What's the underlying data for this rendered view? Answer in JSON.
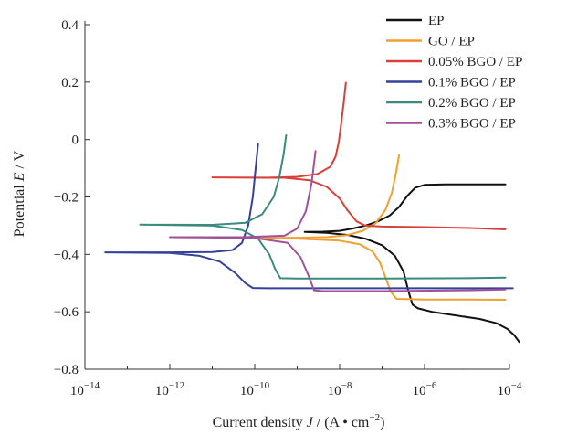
{
  "chart_data": {
    "type": "line",
    "xlabel": "Current density J / (A • cm⁻²)",
    "ylabel": "Potential E / V",
    "x_scale": "log",
    "xlim": [
      1e-14,
      0.0001
    ],
    "ylim": [
      -0.8,
      0.4
    ],
    "x_tick_exponents": [
      -14,
      -12,
      -10,
      -8,
      -6,
      -4
    ],
    "y_ticks": [
      0.4,
      0.2,
      0,
      -0.2,
      -0.4,
      -0.6,
      -0.8
    ],
    "y_tick_labels": [
      "0.4",
      "0.2",
      "0",
      "−0.2",
      "−0.4",
      "−0.6",
      "−0.8"
    ],
    "grid": false,
    "legend_position": "top-right",
    "series": [
      {
        "name": "EP",
        "color": "#111111",
        "points": [
          [
            1.5e-09,
            -0.322
          ],
          [
            4e-09,
            -0.321
          ],
          [
            1e-08,
            -0.318
          ],
          [
            2e-08,
            -0.31
          ],
          [
            4e-08,
            -0.3
          ],
          [
            8e-08,
            -0.285
          ],
          [
            1.5e-07,
            -0.265
          ],
          [
            2.5e-07,
            -0.235
          ],
          [
            4e-07,
            -0.195
          ],
          [
            6e-07,
            -0.168
          ],
          [
            1e-06,
            -0.158
          ],
          [
            3e-06,
            -0.156
          ],
          [
            1e-05,
            -0.156
          ],
          [
            3e-05,
            -0.156
          ],
          [
            8e-05,
            -0.156
          ],
          [
            8e-05,
            -0.156
          ],
          [
            1.5e-09,
            -0.322
          ],
          [
            5e-09,
            -0.325
          ],
          [
            1.5e-08,
            -0.332
          ],
          [
            4e-08,
            -0.345
          ],
          [
            1e-07,
            -0.368
          ],
          [
            2e-07,
            -0.405
          ],
          [
            3.2e-07,
            -0.46
          ],
          [
            4.2e-07,
            -0.53
          ],
          [
            5.2e-07,
            -0.575
          ],
          [
            7e-07,
            -0.588
          ],
          [
            1.5e-06,
            -0.6
          ],
          [
            5e-06,
            -0.612
          ],
          [
            2e-05,
            -0.625
          ],
          [
            5e-05,
            -0.64
          ],
          [
            9e-05,
            -0.66
          ],
          [
            0.00013,
            -0.682
          ],
          [
            0.00017,
            -0.705
          ]
        ]
      },
      {
        "name": "GO / EP",
        "color": "#f0a030",
        "points": [
          [
            5e-11,
            -0.343
          ],
          [
            1e-09,
            -0.342
          ],
          [
            5e-09,
            -0.34
          ],
          [
            1.5e-08,
            -0.333
          ],
          [
            3.5e-08,
            -0.318
          ],
          [
            7e-08,
            -0.292
          ],
          [
            1.2e-07,
            -0.245
          ],
          [
            1.7e-07,
            -0.185
          ],
          [
            2.1e-07,
            -0.12
          ],
          [
            2.5e-07,
            -0.055
          ],
          [
            2.5e-07,
            -0.055
          ],
          [
            5e-11,
            -0.343
          ],
          [
            1e-09,
            -0.345
          ],
          [
            1e-08,
            -0.352
          ],
          [
            3e-08,
            -0.365
          ],
          [
            6e-08,
            -0.39
          ],
          [
            9e-08,
            -0.43
          ],
          [
            1.2e-07,
            -0.48
          ],
          [
            1.6e-07,
            -0.53
          ],
          [
            2.2e-07,
            -0.555
          ],
          [
            1e-06,
            -0.557
          ],
          [
            1e-05,
            -0.557
          ],
          [
            8e-05,
            -0.558
          ]
        ]
      },
      {
        "name": "0.05% BGO / EP",
        "color": "#d9403a",
        "points": [
          [
            1e-11,
            -0.132
          ],
          [
            2e-10,
            -0.133
          ],
          [
            1e-09,
            -0.13
          ],
          [
            3e-09,
            -0.12
          ],
          [
            6e-09,
            -0.095
          ],
          [
            8e-09,
            -0.06
          ],
          [
            9.5e-09,
            -0.01
          ],
          [
            1.1e-08,
            0.06
          ],
          [
            1.25e-08,
            0.13
          ],
          [
            1.4e-08,
            0.198
          ],
          [
            1.4e-08,
            0.198
          ],
          [
            1e-11,
            -0.132
          ],
          [
            5e-10,
            -0.133
          ],
          [
            2e-09,
            -0.142
          ],
          [
            5e-09,
            -0.165
          ],
          [
            1e-08,
            -0.205
          ],
          [
            1.5e-08,
            -0.245
          ],
          [
            2.5e-08,
            -0.285
          ],
          [
            4e-08,
            -0.3
          ],
          [
            1e-07,
            -0.303
          ],
          [
            1e-06,
            -0.305
          ],
          [
            1e-05,
            -0.308
          ],
          [
            8e-05,
            -0.313
          ]
        ]
      },
      {
        "name": "0.1% BGO / EP",
        "color": "#35409a",
        "points": [
          [
            3e-14,
            -0.393
          ],
          [
            1e-12,
            -0.393
          ],
          [
            1e-11,
            -0.392
          ],
          [
            3e-11,
            -0.385
          ],
          [
            5e-11,
            -0.36
          ],
          [
            7e-11,
            -0.3
          ],
          [
            9e-11,
            -0.2
          ],
          [
            1.05e-10,
            -0.1
          ],
          [
            1.2e-10,
            -0.015
          ],
          [
            1.2e-10,
            -0.015
          ],
          [
            3e-14,
            -0.393
          ],
          [
            1e-12,
            -0.395
          ],
          [
            5e-12,
            -0.405
          ],
          [
            1.5e-11,
            -0.425
          ],
          [
            3.5e-11,
            -0.465
          ],
          [
            6e-11,
            -0.5
          ],
          [
            9e-11,
            -0.517
          ],
          [
            2e-10,
            -0.518
          ],
          [
            1e-08,
            -0.518
          ],
          [
            1e-06,
            -0.518
          ],
          [
            0.00012,
            -0.518
          ]
        ]
      },
      {
        "name": "0.2% BGO / EP",
        "color": "#3a8a80",
        "points": [
          [
            2e-13,
            -0.296
          ],
          [
            1e-11,
            -0.297
          ],
          [
            6e-11,
            -0.29
          ],
          [
            1.5e-10,
            -0.26
          ],
          [
            2.8e-10,
            -0.2
          ],
          [
            3.8e-10,
            -0.13
          ],
          [
            4.8e-10,
            -0.05
          ],
          [
            5.5e-10,
            0.015
          ],
          [
            5.5e-10,
            0.015
          ],
          [
            2e-13,
            -0.296
          ],
          [
            1e-11,
            -0.3
          ],
          [
            5e-11,
            -0.315
          ],
          [
            1.2e-10,
            -0.345
          ],
          [
            2.2e-10,
            -0.4
          ],
          [
            3e-10,
            -0.45
          ],
          [
            4e-10,
            -0.483
          ],
          [
            1e-09,
            -0.484
          ],
          [
            1e-07,
            -0.484
          ],
          [
            1e-05,
            -0.483
          ],
          [
            8e-05,
            -0.481
          ]
        ]
      },
      {
        "name": "0.3% BGO / EP",
        "color": "#a2509a",
        "points": [
          [
            1e-12,
            -0.34
          ],
          [
            5e-11,
            -0.34
          ],
          [
            5e-10,
            -0.335
          ],
          [
            1e-09,
            -0.31
          ],
          [
            1.6e-09,
            -0.25
          ],
          [
            2.2e-09,
            -0.15
          ],
          [
            2.7e-09,
            -0.04
          ],
          [
            2.7e-09,
            -0.04
          ],
          [
            1e-12,
            -0.34
          ],
          [
            1e-10,
            -0.343
          ],
          [
            6e-10,
            -0.36
          ],
          [
            1.2e-09,
            -0.41
          ],
          [
            1.8e-09,
            -0.47
          ],
          [
            2.5e-09,
            -0.525
          ],
          [
            4e-09,
            -0.528
          ],
          [
            1e-07,
            -0.528
          ],
          [
            1e-05,
            -0.525
          ],
          [
            8e-05,
            -0.522
          ]
        ]
      }
    ]
  }
}
